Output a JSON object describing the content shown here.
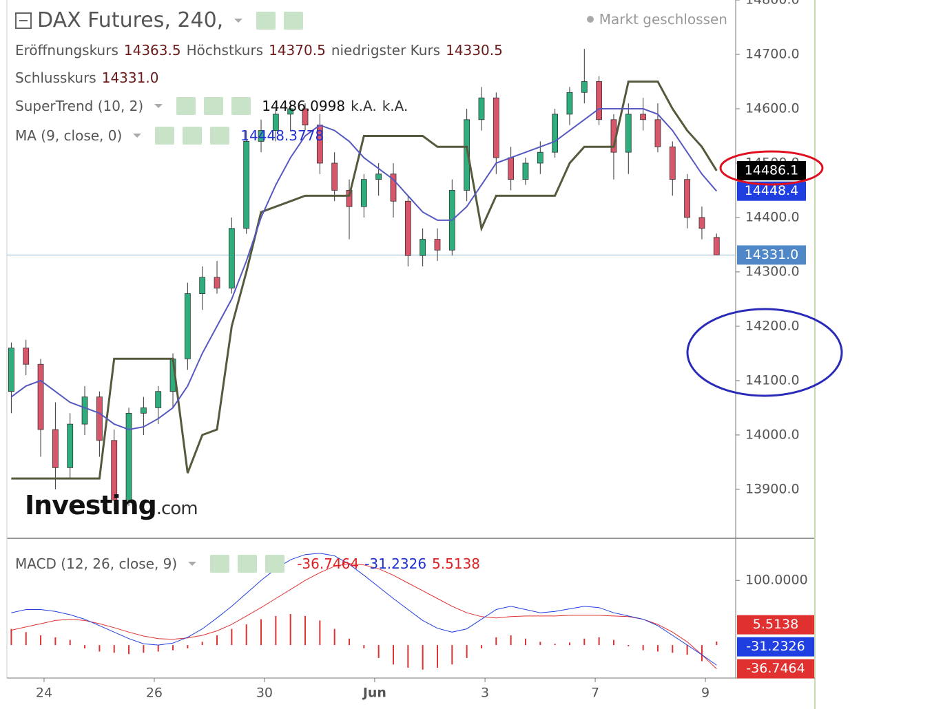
{
  "header": {
    "title": "DAX Futures, 240,",
    "status": "Markt geschlossen",
    "ohlc_legend": [
      {
        "name": "Eröffnungskurs",
        "value": "14363.5"
      },
      {
        "name": "Höchstkurs",
        "value": "14370.5"
      },
      {
        "name": "niedrigster Kurs",
        "value": "14330.5"
      },
      {
        "name": "Schlusskurs",
        "value": "14331.0"
      }
    ],
    "supertrend_extra": [
      "k.A.",
      "k.A."
    ],
    "logo": "Investing",
    "logo_suffix": ".com"
  },
  "chart_data": [
    {
      "type": "candlestick",
      "up_color": "#2fae7d",
      "down_color": "#d9556a",
      "ohlc": {
        "open": [
          14080,
          14160,
          14130,
          14010,
          13940,
          14020,
          14070,
          13990,
          13880,
          14040,
          14050,
          14080,
          14140,
          14260,
          14290,
          14270,
          14380,
          14540,
          14560,
          14590,
          14600,
          14570,
          14500,
          14450,
          14420,
          14470,
          14480,
          14430,
          14330,
          14360,
          14340,
          14450,
          14580,
          14620,
          14510,
          14470,
          14500,
          14520,
          14590,
          14630,
          14650,
          14580,
          14520,
          14590,
          14580,
          14530,
          14470,
          14400,
          14363.5
        ],
        "high": [
          14170,
          14175,
          14140,
          14060,
          14040,
          14090,
          14080,
          14010,
          14050,
          14070,
          14090,
          14150,
          14280,
          14310,
          14320,
          14400,
          14560,
          14580,
          14600,
          14610,
          14610,
          14590,
          14520,
          14470,
          14480,
          14500,
          14500,
          14440,
          14380,
          14380,
          14470,
          14600,
          14640,
          14630,
          14530,
          14510,
          14540,
          14600,
          14640,
          14710,
          14660,
          14590,
          14610,
          14620,
          14610,
          14540,
          14480,
          14420,
          14370.5
        ],
        "low": [
          14040,
          14110,
          13960,
          13900,
          13920,
          14000,
          13960,
          13860,
          13870,
          14000,
          14020,
          14050,
          14120,
          14230,
          14260,
          14260,
          14370,
          14520,
          14540,
          14560,
          14560,
          14480,
          14430,
          14360,
          14400,
          14440,
          14400,
          14310,
          14310,
          14320,
          14330,
          14430,
          14560,
          14480,
          14450,
          14460,
          14480,
          14510,
          14570,
          14610,
          14570,
          14470,
          14480,
          14560,
          14520,
          14440,
          14380,
          14360,
          14330.5
        ],
        "close": [
          14160,
          14130,
          14010,
          13940,
          14020,
          14070,
          13990,
          13880,
          14040,
          14050,
          14080,
          14140,
          14260,
          14290,
          14270,
          14380,
          14540,
          14560,
          14590,
          14600,
          14570,
          14500,
          14450,
          14420,
          14470,
          14480,
          14430,
          14330,
          14360,
          14340,
          14450,
          14580,
          14620,
          14510,
          14470,
          14500,
          14520,
          14590,
          14630,
          14650,
          14580,
          14520,
          14590,
          14580,
          14530,
          14470,
          14400,
          14380,
          14331
        ]
      },
      "overlays": [
        {
          "name": "SuperTrend (10, 2)",
          "color": "#555a3c",
          "values": [
            13920,
            13920,
            13920,
            13920,
            13920,
            13920,
            13920,
            14140,
            14140,
            14140,
            14140,
            14140,
            13930,
            14000,
            14010,
            14200,
            14300,
            14410,
            14420,
            14430,
            14440,
            14440,
            14440,
            14440,
            14550,
            14550,
            14550,
            14550,
            14550,
            14530,
            14530,
            14530,
            14380,
            14440,
            14440,
            14440,
            14440,
            14440,
            14500,
            14530,
            14530,
            14530,
            14650,
            14650,
            14650,
            14600,
            14560,
            14530,
            14486.0998
          ]
        },
        {
          "name": "MA (9, close, 0)",
          "color": "#5558c0",
          "values": [
            14070,
            14090,
            14100,
            14080,
            14060,
            14050,
            14040,
            14020,
            14010,
            14015,
            14030,
            14050,
            14090,
            14150,
            14200,
            14250,
            14320,
            14400,
            14460,
            14510,
            14550,
            14570,
            14560,
            14540,
            14510,
            14490,
            14470,
            14440,
            14410,
            14395,
            14395,
            14420,
            14460,
            14500,
            14510,
            14520,
            14530,
            14540,
            14560,
            14580,
            14600,
            14600,
            14600,
            14600,
            14590,
            14560,
            14520,
            14480,
            14448.3778
          ]
        }
      ],
      "ylim": [
        13810,
        14800
      ],
      "yticks": [
        {
          "value": 14800,
          "label": "14800.0"
        },
        {
          "value": 14700,
          "label": "14700.0"
        },
        {
          "value": 14600,
          "label": "14600.0"
        },
        {
          "value": 14500,
          "label": "14500.0"
        },
        {
          "value": 14400,
          "label": "14400.0"
        },
        {
          "value": 14300,
          "label": "14300.0"
        },
        {
          "value": 14200,
          "label": "14200.0"
        },
        {
          "value": 14100,
          "label": "14100.0"
        },
        {
          "value": 14000,
          "label": "14000.0"
        },
        {
          "value": 13900,
          "label": "13900.0"
        }
      ],
      "xlim": [
        -0.3,
        49.3
      ],
      "xticks": [
        {
          "value": 2.23,
          "label": "24"
        },
        {
          "value": 9.73,
          "label": "26"
        },
        {
          "value": 17.23,
          "label": "30"
        },
        {
          "value": 24.73,
          "label": "Jun"
        },
        {
          "value": 32.24,
          "label": "3"
        },
        {
          "value": 39.74,
          "label": "7"
        },
        {
          "value": 47.24,
          "label": "9"
        }
      ],
      "price_line": {
        "value": 14331,
        "color": "#8ab4d8"
      },
      "badges": [
        {
          "value": 14486.1,
          "color": "#000000"
        },
        {
          "value": 14448.4,
          "color": "#1f3fe0"
        },
        {
          "value": 14331,
          "label": "14331.0",
          "color": "#4f87c7"
        }
      ]
    },
    {
      "type": "macd",
      "title": "MACD (12, 26, close, 9)",
      "series": [
        {
          "color": "#e03030",
          "values": [
            23,
            28,
            33,
            38,
            40,
            38,
            33,
            27,
            20,
            14,
            10,
            9,
            11,
            15,
            22,
            32,
            45,
            58,
            72,
            86,
            100,
            112,
            122,
            126,
            124,
            118,
            108,
            96,
            84,
            72,
            60,
            50,
            44,
            42,
            44,
            45,
            45,
            45,
            46,
            46,
            46,
            45,
            44,
            40,
            32,
            20,
            5,
            -15,
            -36.7464
          ]
        },
        {
          "color": "#1f3fe0",
          "values": [
            50,
            55,
            55,
            52,
            47,
            40,
            30,
            20,
            10,
            2,
            0,
            3,
            12,
            25,
            42,
            60,
            80,
            100,
            118,
            132,
            140,
            142,
            138,
            125,
            108,
            90,
            72,
            55,
            38,
            26,
            20,
            25,
            40,
            55,
            60,
            55,
            50,
            52,
            56,
            60,
            58,
            50,
            45,
            40,
            30,
            15,
            0,
            -15,
            -31.2326
          ]
        }
      ],
      "histogram": {
        "color": "#e03030",
        "values": [
          25,
          20,
          15,
          12,
          8,
          -5,
          -10,
          -12,
          -14,
          -12,
          -10,
          -8,
          -5,
          5,
          15,
          25,
          32,
          40,
          45,
          48,
          45,
          38,
          25,
          10,
          -5,
          -20,
          -30,
          -35,
          -38,
          -35,
          -30,
          -20,
          -5,
          12,
          15,
          10,
          5,
          2,
          4,
          10,
          12,
          8,
          -2,
          -8,
          -10,
          -12,
          -15,
          -25,
          5.5138
        ]
      },
      "ylim": [
        -51,
        162
      ],
      "yticks": [
        {
          "value": 100,
          "label": "100.0000"
        }
      ]
    }
  ]
}
